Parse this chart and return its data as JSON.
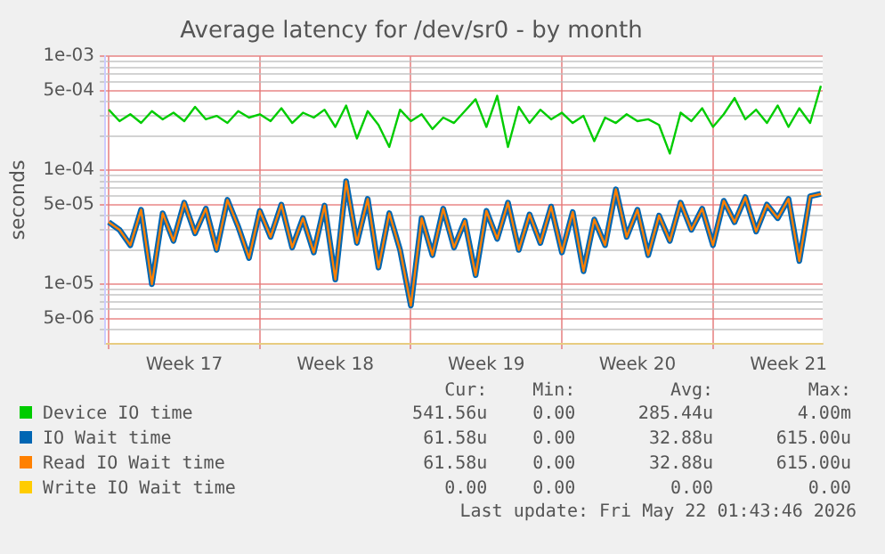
{
  "chart_data": {
    "type": "line",
    "title": "Average latency for /dev/sr0 - by month",
    "ylabel": "seconds",
    "log": "y",
    "grid": true,
    "legend": "bottom",
    "marker": "none",
    "line_style": "solid",
    "xlim": [
      "2026-04-18T20:00",
      "2026-05-22T02:00"
    ],
    "xticks": [
      {
        "value": "2026-04-19",
        "label": null
      },
      {
        "value": "2026-04-22T12:00",
        "label": "Week 17"
      },
      {
        "value": "2026-04-26",
        "label": null
      },
      {
        "value": "2026-04-29T12:00",
        "label": "Week 18"
      },
      {
        "value": "2026-05-03",
        "label": null
      },
      {
        "value": "2026-05-06T12:00",
        "label": "Week 19"
      },
      {
        "value": "2026-05-10",
        "label": null
      },
      {
        "value": "2026-05-13T12:00",
        "label": "Week 20"
      },
      {
        "value": "2026-05-17",
        "label": null
      },
      {
        "value": "2026-05-20T12:00",
        "label": "Week 21"
      }
    ],
    "ylim": [
      3e-06,
      0.001
    ],
    "yticks": [
      {
        "value": 4e-06,
        "label": null
      },
      {
        "value": 5e-06,
        "label": "5e-06"
      },
      {
        "value": 6e-06,
        "label": null
      },
      {
        "value": 7e-06,
        "label": null
      },
      {
        "value": 8e-06,
        "label": null
      },
      {
        "value": 9e-06,
        "label": null
      },
      {
        "value": 1e-05,
        "label": "1e-05"
      },
      {
        "value": 2e-05,
        "label": null
      },
      {
        "value": 3e-05,
        "label": null
      },
      {
        "value": 4e-05,
        "label": null
      },
      {
        "value": 5e-05,
        "label": "5e-05"
      },
      {
        "value": 6e-05,
        "label": null
      },
      {
        "value": 7e-05,
        "label": null
      },
      {
        "value": 8e-05,
        "label": null
      },
      {
        "value": 9e-05,
        "label": null
      },
      {
        "value": 0.0001,
        "label": "1e-04"
      },
      {
        "value": 0.0002,
        "label": null
      },
      {
        "value": 0.0003,
        "label": null
      },
      {
        "value": 0.0004,
        "label": null
      },
      {
        "value": 0.0005,
        "label": "5e-04"
      },
      {
        "value": 0.0006,
        "label": null
      },
      {
        "value": 0.0007,
        "label": null
      },
      {
        "value": 0.0008,
        "label": null
      },
      {
        "value": 0.0009,
        "label": null
      },
      {
        "value": 0.001,
        "label": "1e-03"
      }
    ],
    "x": [
      "2026-04-19T00:00",
      "2026-04-19T12:00",
      "2026-04-20T00:00",
      "2026-04-20T12:00",
      "2026-04-21T00:00",
      "2026-04-21T12:00",
      "2026-04-22T00:00",
      "2026-04-22T12:00",
      "2026-04-23T00:00",
      "2026-04-23T12:00",
      "2026-04-24T00:00",
      "2026-04-24T12:00",
      "2026-04-25T00:00",
      "2026-04-25T12:00",
      "2026-04-26T00:00",
      "2026-04-26T12:00",
      "2026-04-27T00:00",
      "2026-04-27T12:00",
      "2026-04-28T00:00",
      "2026-04-28T12:00",
      "2026-04-29T00:00",
      "2026-04-29T12:00",
      "2026-04-30T00:00",
      "2026-04-30T12:00",
      "2026-05-01T00:00",
      "2026-05-01T12:00",
      "2026-05-02T00:00",
      "2026-05-02T12:00",
      "2026-05-03T00:00",
      "2026-05-03T12:00",
      "2026-05-04T00:00",
      "2026-05-04T12:00",
      "2026-05-05T00:00",
      "2026-05-05T12:00",
      "2026-05-06T00:00",
      "2026-05-06T12:00",
      "2026-05-07T00:00",
      "2026-05-07T12:00",
      "2026-05-08T00:00",
      "2026-05-08T12:00",
      "2026-05-09T00:00",
      "2026-05-09T12:00",
      "2026-05-10T00:00",
      "2026-05-10T12:00",
      "2026-05-11T00:00",
      "2026-05-11T12:00",
      "2026-05-12T00:00",
      "2026-05-12T12:00",
      "2026-05-13T00:00",
      "2026-05-13T12:00",
      "2026-05-14T00:00",
      "2026-05-14T12:00",
      "2026-05-15T00:00",
      "2026-05-15T12:00",
      "2026-05-16T00:00",
      "2026-05-16T12:00",
      "2026-05-17T00:00",
      "2026-05-17T12:00",
      "2026-05-18T00:00",
      "2026-05-18T12:00",
      "2026-05-19T00:00",
      "2026-05-19T12:00",
      "2026-05-20T00:00",
      "2026-05-20T12:00",
      "2026-05-21T00:00",
      "2026-05-21T12:00",
      "2026-05-22T00:00"
    ],
    "series": [
      {
        "name": "Device IO time",
        "color": "#00cc00",
        "values": [
          0.00034,
          0.00027,
          0.00031,
          0.00026,
          0.00033,
          0.00028,
          0.00032,
          0.00027,
          0.00036,
          0.00028,
          0.0003,
          0.00026,
          0.00033,
          0.00029,
          0.00031,
          0.00027,
          0.00035,
          0.00026,
          0.00032,
          0.00029,
          0.00034,
          0.00024,
          0.00037,
          0.00019,
          0.00033,
          0.00025,
          0.00016,
          0.00034,
          0.00027,
          0.00031,
          0.00023,
          0.00029,
          0.00026,
          0.00033,
          0.00042,
          0.00024,
          0.00045,
          0.00016,
          0.00036,
          0.00026,
          0.00034,
          0.00028,
          0.00032,
          0.00026,
          0.0003,
          0.00018,
          0.00029,
          0.00026,
          0.00031,
          0.00027,
          0.00028,
          0.00025,
          0.00014,
          0.00032,
          0.00027,
          0.00035,
          0.00024,
          0.00031,
          0.00043,
          0.00028,
          0.00034,
          0.00026,
          0.00037,
          0.00024,
          0.00035,
          0.00026,
          0.00055
        ]
      },
      {
        "name": "IO Wait time",
        "color": "#0066b3",
        "values": [
          3.5e-05,
          3e-05,
          2.2e-05,
          4.5e-05,
          1e-05,
          4.2e-05,
          2.4e-05,
          5.2e-05,
          2.8e-05,
          4.6e-05,
          2e-05,
          5.5e-05,
          3.2e-05,
          1.7e-05,
          4.4e-05,
          2.6e-05,
          5e-05,
          2.1e-05,
          3.8e-05,
          1.9e-05,
          4.9e-05,
          1.1e-05,
          8e-05,
          2.3e-05,
          5.6e-05,
          1.4e-05,
          4.2e-05,
          2e-05,
          6.5e-06,
          3.8e-05,
          1.8e-05,
          4.6e-05,
          2.1e-05,
          3.6e-05,
          1.2e-05,
          4.4e-05,
          2.5e-05,
          5.2e-05,
          2e-05,
          4.1e-05,
          2.3e-05,
          4.8e-05,
          1.9e-05,
          4.3e-05,
          1.3e-05,
          3.7e-05,
          2.2e-05,
          6.8e-05,
          2.6e-05,
          4.5e-05,
          1.8e-05,
          4e-05,
          2.4e-05,
          5.2e-05,
          3e-05,
          4.6e-05,
          2.2e-05,
          5.4e-05,
          3.5e-05,
          5.8e-05,
          2.9e-05,
          5e-05,
          3.8e-05,
          5.6e-05,
          1.6e-05,
          5.9e-05,
          6.2e-05
        ]
      },
      {
        "name": "Read IO Wait time",
        "color": "#ff8000",
        "values": [
          3.5e-05,
          3e-05,
          2.2e-05,
          4.5e-05,
          1e-05,
          4.2e-05,
          2.4e-05,
          5.2e-05,
          2.8e-05,
          4.6e-05,
          2e-05,
          5.5e-05,
          3.2e-05,
          1.7e-05,
          4.4e-05,
          2.6e-05,
          5e-05,
          2.1e-05,
          3.8e-05,
          1.9e-05,
          4.9e-05,
          1.1e-05,
          8e-05,
          2.3e-05,
          5.6e-05,
          1.4e-05,
          4.2e-05,
          2e-05,
          6.5e-06,
          3.8e-05,
          1.8e-05,
          4.6e-05,
          2.1e-05,
          3.6e-05,
          1.2e-05,
          4.4e-05,
          2.5e-05,
          5.2e-05,
          2e-05,
          4.1e-05,
          2.3e-05,
          4.8e-05,
          1.9e-05,
          4.3e-05,
          1.3e-05,
          3.7e-05,
          2.2e-05,
          6.8e-05,
          2.6e-05,
          4.5e-05,
          1.8e-05,
          4e-05,
          2.4e-05,
          5.2e-05,
          3e-05,
          4.6e-05,
          2.2e-05,
          5.4e-05,
          3.5e-05,
          5.8e-05,
          2.9e-05,
          5e-05,
          3.8e-05,
          5.6e-05,
          1.6e-05,
          5.9e-05,
          6.2e-05
        ]
      },
      {
        "name": "Write IO Wait time",
        "color": "#ffcc00",
        "values": [
          null,
          null,
          null,
          null,
          null,
          null,
          null,
          null,
          null,
          null,
          null,
          null,
          null,
          null,
          null,
          null,
          null,
          null,
          null,
          null,
          null,
          null,
          null,
          null,
          null,
          null,
          null,
          null,
          null,
          null,
          null,
          null,
          null,
          null,
          null,
          null,
          null,
          null,
          null,
          null,
          null,
          null,
          null,
          null,
          null,
          null,
          null,
          null,
          null,
          null,
          null,
          null,
          null,
          null,
          null,
          null,
          null,
          null,
          null,
          null,
          null,
          null,
          null,
          null,
          null,
          null,
          null
        ]
      }
    ],
    "annotations": [
      "Cur:",
      "Min:",
      "Avg:",
      "Max:",
      "541.56u",
      "0.00",
      "285.44u",
      "4.00m",
      "61.58u",
      "0.00",
      "32.88u",
      "615.00u",
      "61.58u",
      "0.00",
      "32.88u",
      "615.00u",
      "0.00",
      "0.00",
      "0.00",
      "0.00",
      "Last update: Fri May 22 01:43:46 2026"
    ]
  }
}
